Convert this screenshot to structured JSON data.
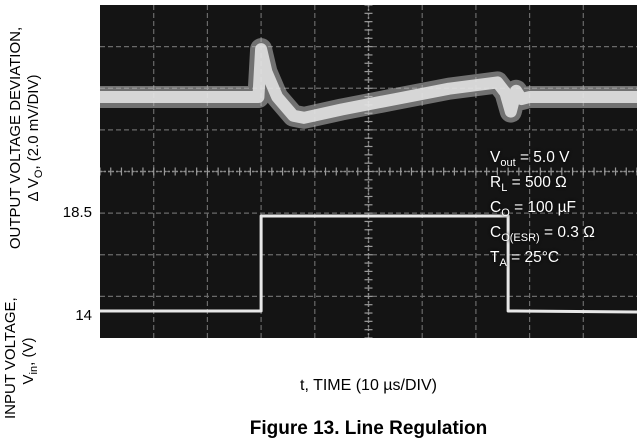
{
  "chart_data": {
    "type": "line",
    "title": "Figure 13. Line Regulation",
    "xlabel": "t, TIME (10 µs/DIV)",
    "ylabel_top": [
      "OUTPUT VOLTAGE DEVIATION,",
      "Δ VO, (2.0 mV/DIV)"
    ],
    "ylabel_bottom": [
      "INPUT VOLTAGE,",
      "Vin, (V)"
    ],
    "yticks": [
      "18.5",
      "14"
    ],
    "grid": true,
    "background_color": "#141414",
    "trace_color": "#e8e8e8",
    "annotation": [
      "Vout = 5.0 V",
      "RL = 500 Ω",
      "CO = 100 µF",
      "CO(ESR) = 0.3 Ω",
      "TA = 25°C"
    ],
    "x_divisions": 10,
    "y_divisions": 8,
    "series": [
      {
        "channel": "input",
        "x_div": [
          0,
          3.0,
          3.0,
          7.6,
          7.6,
          7.75,
          10
        ],
        "level_v": [
          14,
          14,
          18.5,
          18.5,
          14,
          14,
          13.95
        ]
      },
      {
        "channel": "output",
        "x_div": [
          0,
          2.95,
          3.0,
          3.1,
          3.3,
          3.6,
          3.8,
          4.5,
          5.5,
          6.5,
          7.4,
          7.55,
          7.65,
          7.75,
          7.85,
          8.0,
          9.0,
          10
        ],
        "deviation_div": [
          0.0,
          0.0,
          1.15,
          0.6,
          0.0,
          -0.45,
          -0.5,
          -0.3,
          -0.05,
          0.2,
          0.35,
          0.1,
          -0.35,
          0.15,
          -0.05,
          0.0,
          0.0,
          0.0
        ]
      }
    ]
  }
}
